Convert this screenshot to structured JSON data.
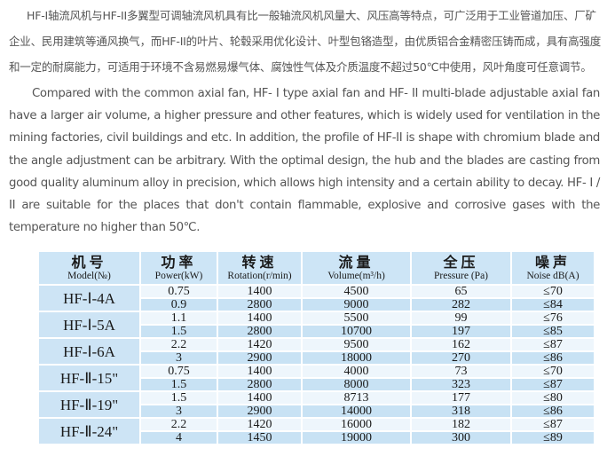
{
  "chinese_paragraph": [
    "HF-I轴流风机与HF-II多翼型可调轴流风机具有比一般轴流风机风量大、风压高等特点，可广泛用于工业管道加压、厂矿",
    "企业、民用建筑等通风换气，而HF-II的叶片、轮毂采用优化设计、叶型包铬造型，由优质铝合金精密压铸而成，具有高强度",
    "和一定的耐腐能力，可适用于环境不含易燃易爆气体、腐蚀性气体及介质温度不超过50℃中使用，风叶角度可任意调节。"
  ],
  "english_paragraph": [
    "Compared with the common axial fan, HF- I type axial fan and HF- II multi-blade adjustable axial fan",
    "have a larger air volume, a higher pressure and other features, which is widely used for ventilation in the",
    "mining factories, civil buildings and etc. In addition, the profile of HF-II is shape with chromium blade and",
    "the angle adjustment can be arbitrary. With the optimal design, the hub and the blades are casting from",
    "good quality aluminum alloy in precision, which allows high intensity and a certain ability to decay. HF- I /",
    "II are suitable for the places that don't contain flammable, explosive and corrosive gases with the",
    "temperature no higher than 50℃."
  ],
  "table": {
    "headers": [
      {
        "zh": "机号",
        "en": "Model(№)"
      },
      {
        "zh": "功率",
        "en": "Power(kW)"
      },
      {
        "zh": "转速",
        "en": "Rotation(r/min)"
      },
      {
        "zh": "流量",
        "en": "Volume(m³/h)"
      },
      {
        "zh": "全压",
        "en": "Pressure (Pa)"
      },
      {
        "zh": "噪声",
        "en": "Noise dB(A)"
      }
    ],
    "models": [
      {
        "model": "HF-Ⅰ-4A",
        "rows": [
          [
            "0.75",
            "1400",
            "4500",
            "65",
            "≤70"
          ],
          [
            "0.9",
            "2800",
            "9000",
            "282",
            "≤84"
          ]
        ]
      },
      {
        "model": "HF-Ⅰ-5A",
        "rows": [
          [
            "1.1",
            "1400",
            "5500",
            "99",
            "≤76"
          ],
          [
            "1.5",
            "2800",
            "10700",
            "197",
            "≤85"
          ]
        ]
      },
      {
        "model": "HF-Ⅰ-6A",
        "rows": [
          [
            "2.2",
            "1420",
            "9500",
            "162",
            "≤87"
          ],
          [
            "3",
            "2900",
            "18000",
            "270",
            "≤86"
          ]
        ]
      },
      {
        "model": "HF-Ⅱ-15\"",
        "rows": [
          [
            "0.75",
            "1400",
            "4000",
            "73",
            "≤70"
          ],
          [
            "1.5",
            "2800",
            "8000",
            "323",
            "≤87"
          ]
        ]
      },
      {
        "model": "HF-Ⅱ-19\"",
        "rows": [
          [
            "1.5",
            "1400",
            "8713",
            "177",
            "≤80"
          ],
          [
            "3",
            "2900",
            "14000",
            "318",
            "≤86"
          ]
        ]
      },
      {
        "model": "HF-Ⅱ-24\"",
        "rows": [
          [
            "2.2",
            "1420",
            "16000",
            "182",
            "≤87"
          ],
          [
            "4",
            "1450",
            "19000",
            "300",
            "≤89"
          ]
        ]
      }
    ]
  }
}
